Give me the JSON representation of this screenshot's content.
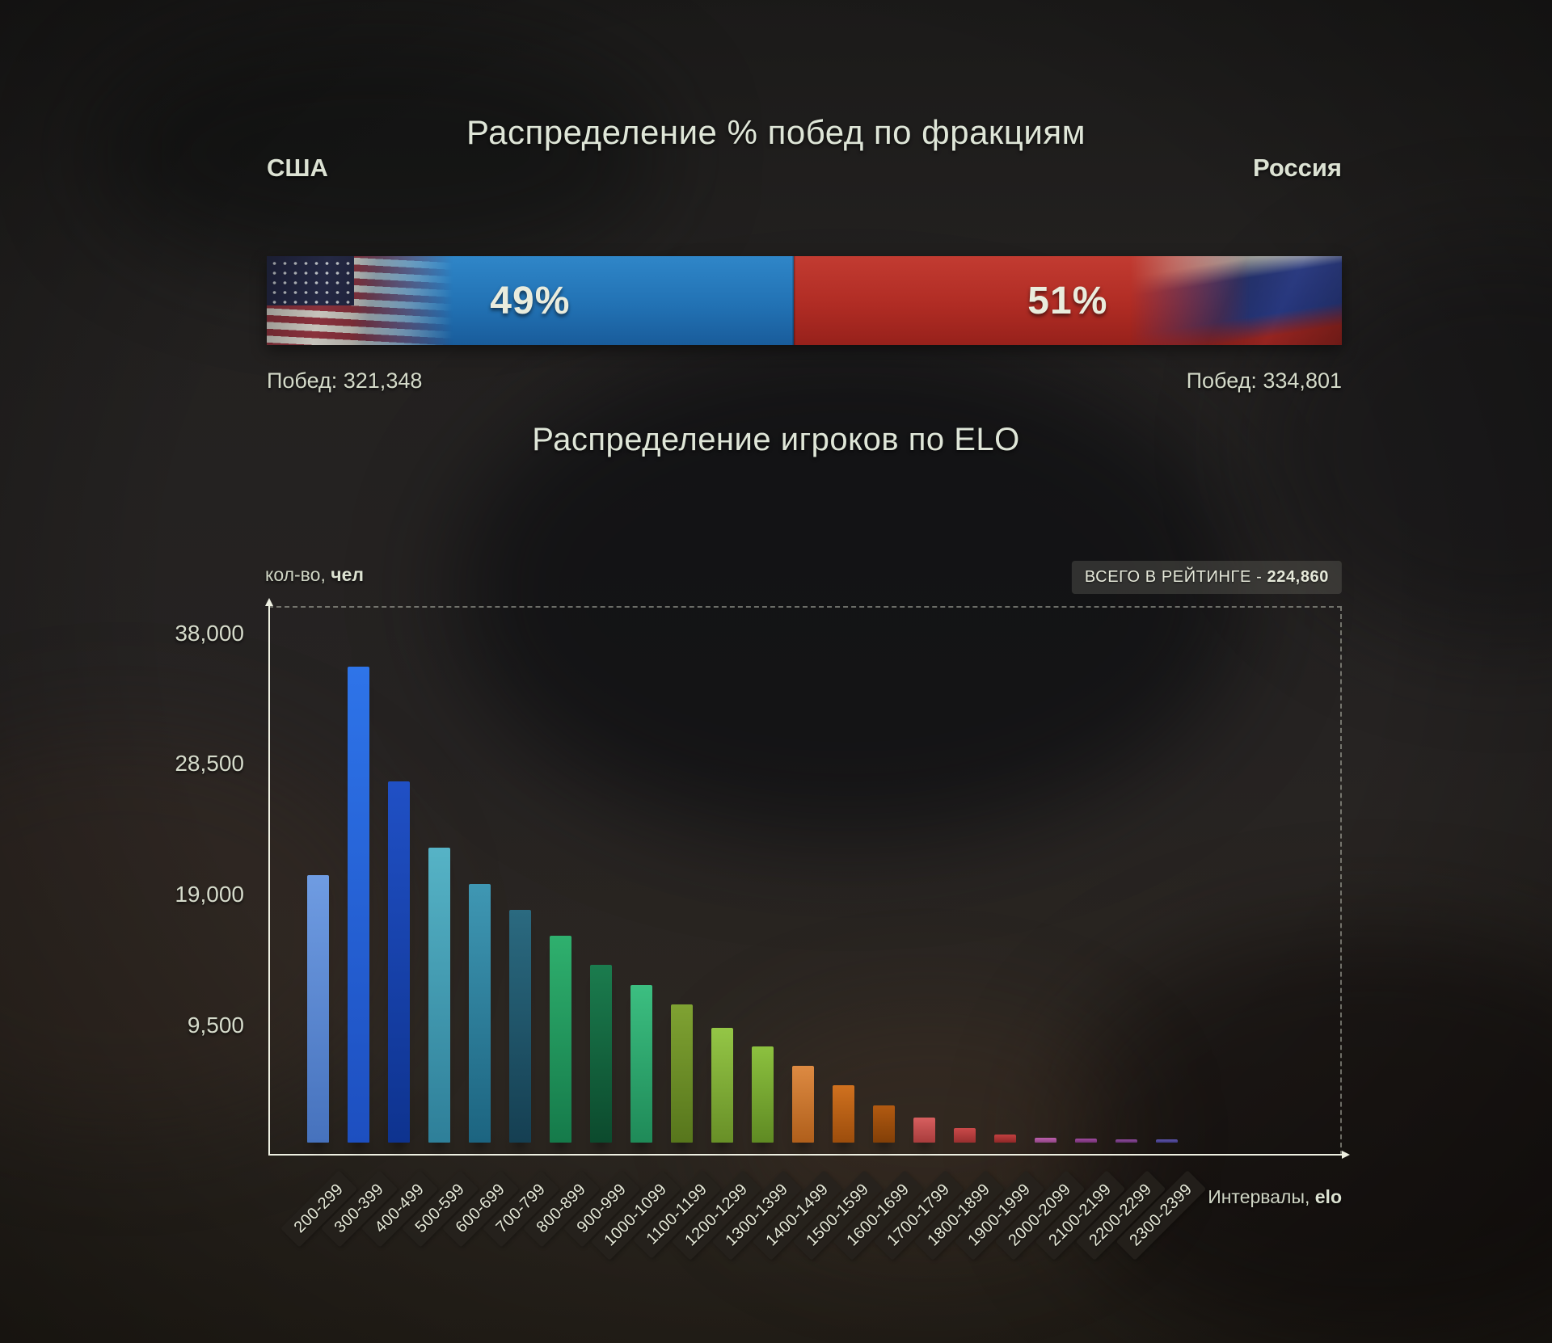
{
  "page": {
    "title_factions": "Распределение % побед по фракциям",
    "title_elo": "Распределение игроков по ELO"
  },
  "factions": {
    "left": {
      "name": "США",
      "percent": "49%",
      "wins_label": "Побед: 321,348",
      "wins": 321348,
      "color": "#2878be"
    },
    "right": {
      "name": "Россия",
      "percent": "51%",
      "wins_label": "Побед: 334,801",
      "wins": 334801,
      "color": "#b5342b"
    }
  },
  "elo": {
    "ylabel_normal": "кол-во, ",
    "ylabel_bold": "чел",
    "xlabel_normal": "Интервалы, ",
    "xlabel_bold": "elo",
    "badge_normal": "ВСЕГО В РЕЙТИНГЕ - ",
    "badge_bold": "224,860",
    "total_rated": 224860
  },
  "colors": {
    "axis": "#eef0e2",
    "text": "#dde2d2",
    "badge_bg": "rgba(116,114,106,0.32)"
  },
  "chart_data": [
    {
      "type": "bar",
      "orientation": "horizontal-stacked",
      "title": "Распределение % побед по фракциям",
      "categories": [
        "США",
        "Россия"
      ],
      "values": [
        49,
        51
      ],
      "value_unit": "percent",
      "wins": [
        321348,
        334801
      ],
      "colors": [
        "#2878be",
        "#b5342b"
      ]
    },
    {
      "type": "bar",
      "title": "Распределение игроков по ELO",
      "xlabel": "Интервалы, elo",
      "ylabel": "кол-во, чел",
      "total": 224860,
      "total_label": "ВСЕГО В РЕЙТИНГЕ - 224,860",
      "ylim": [
        0,
        40000
      ],
      "yticks": [
        38000,
        28500,
        19000,
        9500
      ],
      "ytick_labels": [
        "38,000",
        "28,500",
        "19,000",
        "9,500"
      ],
      "grid": "dashed top and right frame only",
      "legend": "none",
      "categories": [
        "200-299",
        "300-399",
        "400-499",
        "500-599",
        "600-699",
        "700-799",
        "800-899",
        "900-999",
        "1000-1099",
        "1100-1199",
        "1200-1299",
        "1300-1399",
        "1400-1499",
        "1500-1599",
        "1600-1699",
        "1700-1799",
        "1800-1899",
        "1900-1999",
        "2000-2099",
        "2100-2199",
        "2200-2299",
        "2300-2399"
      ],
      "values": [
        19950,
        35480,
        26900,
        21960,
        19270,
        17350,
        15410,
        13250,
        11730,
        10300,
        8570,
        7165,
        5730,
        4300,
        2760,
        1840,
        1110,
        620,
        375,
        325,
        270,
        195
      ],
      "bar_colors": [
        [
          "#6f9ce2",
          "#4672bd"
        ],
        [
          "#2e74e9",
          "#1d4fc0"
        ],
        [
          "#2050c5",
          "#0e338f"
        ],
        [
          "#56b3c6",
          "#2e7f99"
        ],
        [
          "#3f97b3",
          "#1c6480"
        ],
        [
          "#2b6a80",
          "#153f52"
        ],
        [
          "#2fb06e",
          "#157a4a"
        ],
        [
          "#1b7c4e",
          "#0c4a2d"
        ],
        [
          "#3cbf81",
          "#1f8a58"
        ],
        [
          "#7fa232",
          "#57761c"
        ],
        [
          "#94c646",
          "#688f27"
        ],
        [
          "#8cc13f",
          "#5f8a23"
        ],
        [
          "#dd8a42",
          "#b05f1b"
        ],
        [
          "#d0711f",
          "#9c4d0c"
        ],
        [
          "#b25a11",
          "#823f07"
        ],
        [
          "#d75f5f",
          "#a83c3c"
        ],
        [
          "#ca4a4a",
          "#992f2f"
        ],
        [
          "#c24040",
          "#8f2727"
        ],
        [
          "#bd60ae",
          "#8f4583"
        ],
        [
          "#a04ba0",
          "#723272"
        ],
        [
          "#8f4b9f",
          "#63316f"
        ],
        [
          "#5d54ab",
          "#3f3880"
        ]
      ]
    }
  ]
}
